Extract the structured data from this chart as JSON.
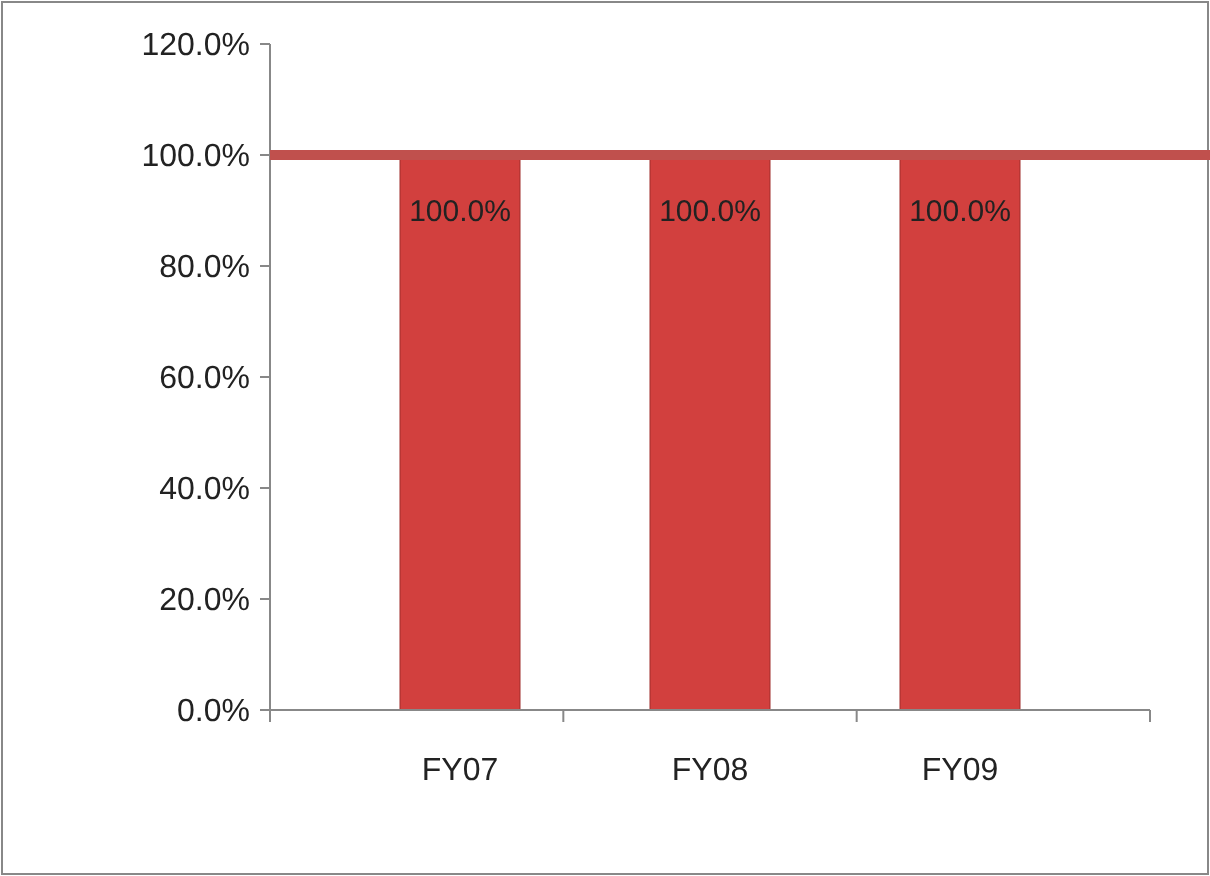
{
  "chart_data": {
    "type": "bar",
    "categories": [
      "FY07",
      "FY08",
      "FY09"
    ],
    "values": [
      100,
      100,
      100
    ],
    "color": "#d2403e",
    "ylim": [
      0,
      120
    ],
    "yticks": [
      {
        "value": 0,
        "label": "0.0%"
      },
      {
        "value": 20,
        "label": "20.0%"
      },
      {
        "value": 40,
        "label": "40.0%"
      },
      {
        "value": 60,
        "label": "60.0%"
      },
      {
        "value": 80,
        "label": "80.0%"
      },
      {
        "value": 100,
        "label": "100.0%"
      },
      {
        "value": 120,
        "label": "120.0%"
      }
    ],
    "value_labels": [
      "100.0%",
      "100.0%",
      "100.0%"
    ],
    "ref_lines": [
      {
        "axis": "y",
        "value": 100,
        "color": "#c0504d"
      }
    ],
    "grid": false
  }
}
